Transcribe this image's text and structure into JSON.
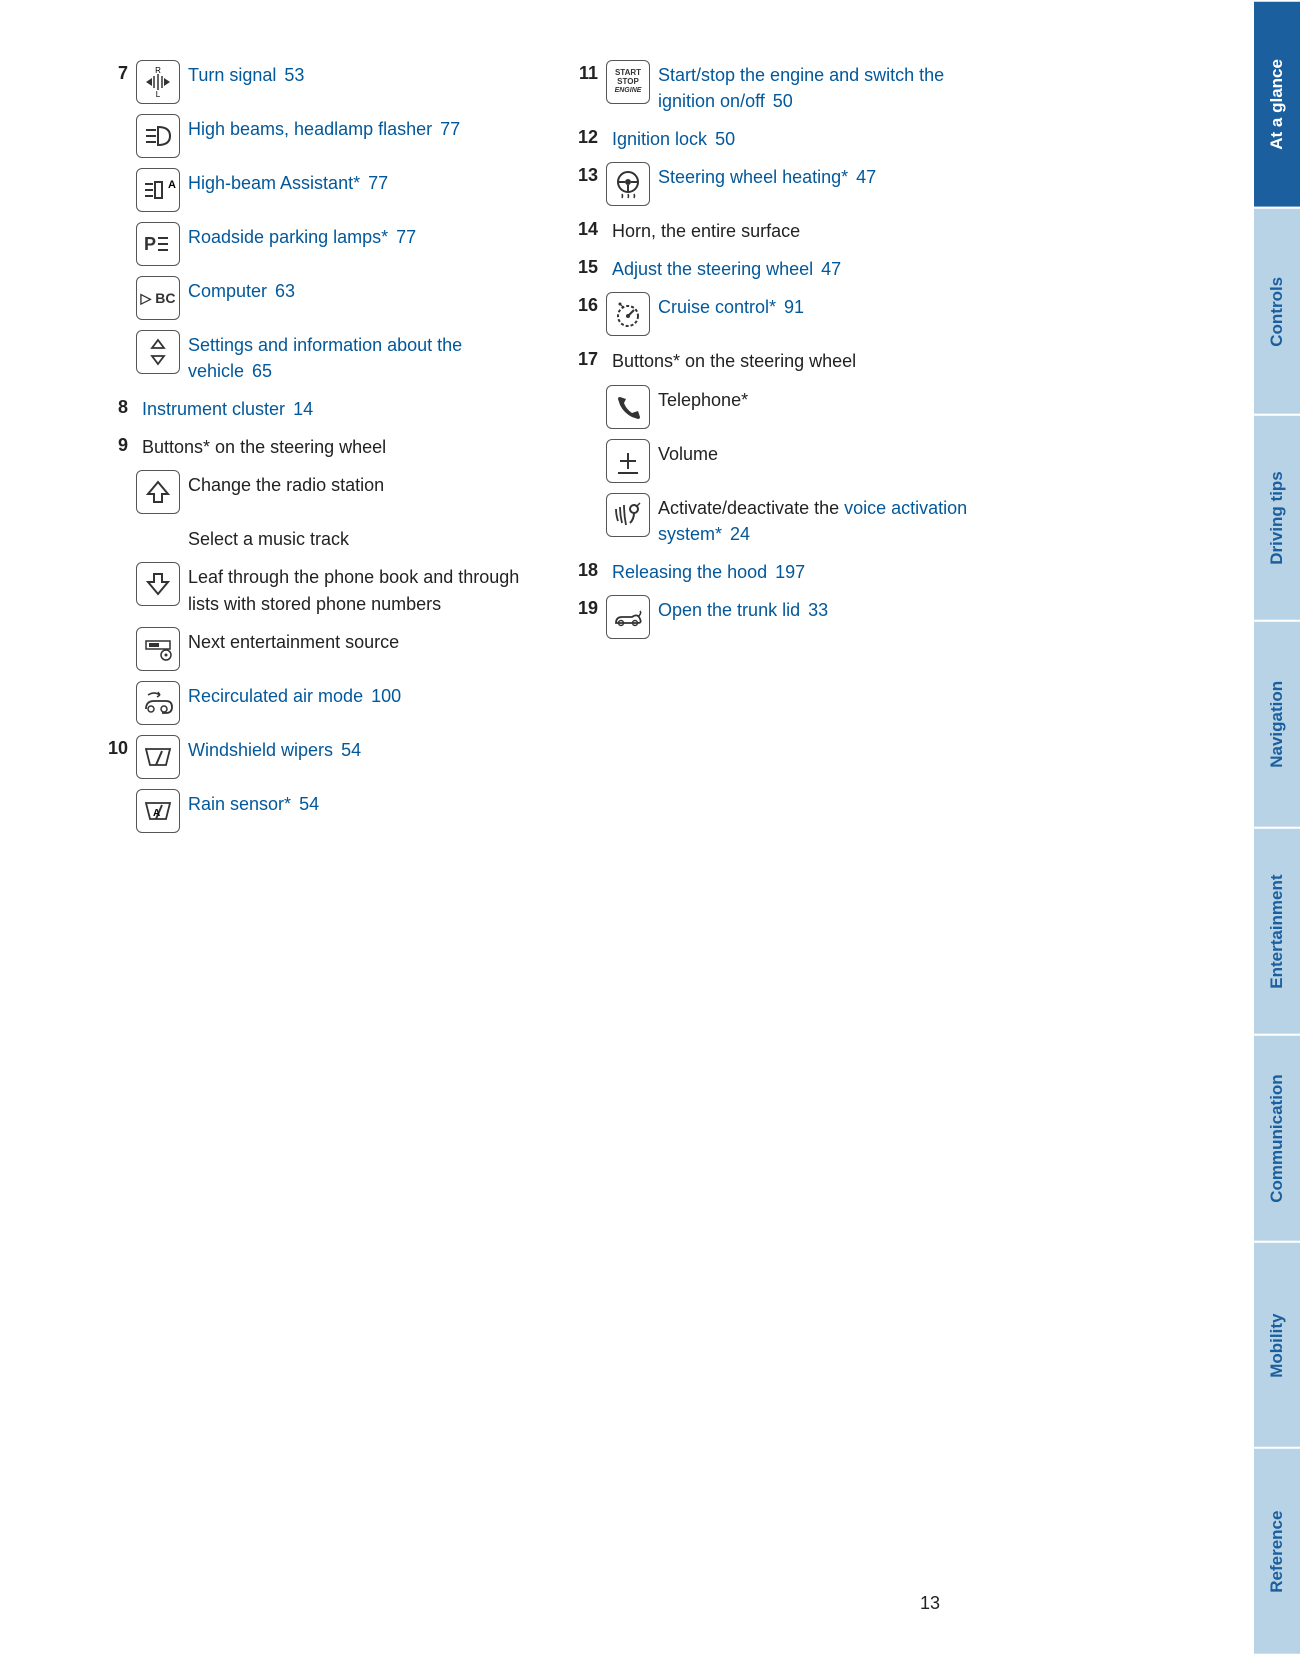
{
  "page_number": "13",
  "link_color": "#02589b",
  "tabs": [
    {
      "label": "At a glance",
      "active": true
    },
    {
      "label": "Controls",
      "active": false
    },
    {
      "label": "Driving tips",
      "active": false
    },
    {
      "label": "Navigation",
      "active": false
    },
    {
      "label": "Entertainment",
      "active": false
    },
    {
      "label": "Communication",
      "active": false
    },
    {
      "label": "Mobility",
      "active": false
    },
    {
      "label": "Reference",
      "active": false
    }
  ],
  "left": [
    {
      "num": "7",
      "icon": "turn-signal",
      "text": "Turn signal",
      "page": "53",
      "link": true
    },
    {
      "num": "",
      "icon": "high-beam",
      "text": "High beams, head­lamp flasher",
      "page": "77",
      "link": true
    },
    {
      "num": "",
      "icon": "high-beam-assist",
      "text": "High-beam Assistant*",
      "page": "77",
      "link": true
    },
    {
      "num": "",
      "icon": "parking-lamp",
      "text": "Roadside parking lamps*",
      "page": "77",
      "link": true
    },
    {
      "num": "",
      "icon": "computer-bc",
      "text": "Computer",
      "page": "63",
      "link": true
    },
    {
      "num": "",
      "icon": "triangles",
      "text": "Settings and information about the vehicle",
      "page": "65",
      "link": true
    },
    {
      "num": "8",
      "icon": null,
      "text": "Instrument cluster",
      "page": "14",
      "link": true
    },
    {
      "num": "9",
      "icon": null,
      "text": "Buttons* on the steering wheel",
      "page": "",
      "link": false
    },
    {
      "num": "",
      "icon": "arrow-up",
      "text": "Change the radio station",
      "page": "",
      "link": false
    },
    {
      "num": "",
      "icon": "spacer",
      "text": "Select a music track",
      "page": "",
      "link": false
    },
    {
      "num": "",
      "icon": "arrow-down",
      "text": "Leaf through the phone book and through lists with stored phone numbers",
      "page": "",
      "link": false
    },
    {
      "num": "",
      "icon": "source",
      "text": "Next entertainment source",
      "page": "",
      "link": false
    },
    {
      "num": "",
      "icon": "recirc",
      "text": "Recirculated air mode",
      "page": "100",
      "link": true
    },
    {
      "num": "10",
      "icon": "wiper",
      "text": "Windshield wipers",
      "page": "54",
      "link": true
    },
    {
      "num": "",
      "icon": "rain-sensor",
      "text": "Rain sensor*",
      "page": "54",
      "link": true
    }
  ],
  "right": [
    {
      "num": "11",
      "icon": "start-stop",
      "text": "Start/stop the engine and switch the ignition on/off",
      "page": "50",
      "link": true
    },
    {
      "num": "12",
      "icon": null,
      "text": "Ignition lock",
      "page": "50",
      "link": true
    },
    {
      "num": "13",
      "icon": "wheel-heat",
      "text": "Steering wheel heating*",
      "page": "47",
      "link": true
    },
    {
      "num": "14",
      "icon": null,
      "text": "Horn, the entire surface",
      "page": "",
      "link": false
    },
    {
      "num": "15",
      "icon": null,
      "text": "Adjust the steering wheel",
      "page": "47",
      "link": true
    },
    {
      "num": "16",
      "icon": "cruise",
      "text": "Cruise control*",
      "page": "91",
      "link": true
    },
    {
      "num": "17",
      "icon": null,
      "text": "Buttons* on the steering wheel",
      "page": "",
      "link": false
    },
    {
      "num": "",
      "icon": "phone",
      "text": "Telephone*",
      "page": "",
      "link": false
    },
    {
      "num": "",
      "icon": "volume",
      "text": "Volume",
      "page": "",
      "link": false
    },
    {
      "num": "",
      "icon": "voice",
      "pretext": "Activate/deactivate the ",
      "text": "voice acti­vation system*",
      "page": "24",
      "link": true
    },
    {
      "num": "18",
      "icon": null,
      "text": "Releasing the hood",
      "page": "197",
      "link": true
    },
    {
      "num": "19",
      "icon": "trunk",
      "text": "Open the trunk lid",
      "page": "33",
      "link": true
    }
  ],
  "icons": {
    "start-stop-l1": "START",
    "start-stop-l2": "STOP",
    "start-stop-l3": "ENGINE",
    "computer-bc": "▷ BC",
    "parking-lamp": "P"
  }
}
